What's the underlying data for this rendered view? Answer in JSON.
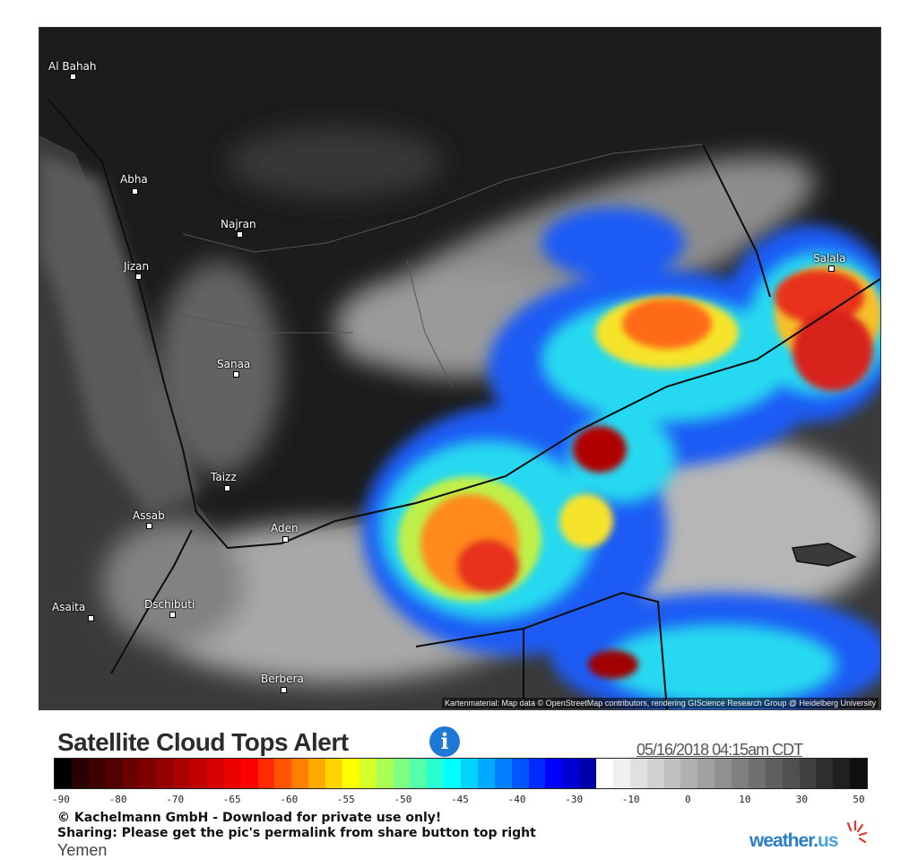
{
  "map": {
    "attribution": "Kartenmaterial: Map data © OpenStreetMap contributors, rendering GIScience Research Group @ Heidelberg University",
    "cities": [
      {
        "name": "Al Bahah"
      },
      {
        "name": "Abha"
      },
      {
        "name": "Najran"
      },
      {
        "name": "Jizan"
      },
      {
        "name": "Sanaa"
      },
      {
        "name": "Taizz"
      },
      {
        "name": "Assab"
      },
      {
        "name": "Aden"
      },
      {
        "name": "Asaita"
      },
      {
        "name": "Dschibuti"
      },
      {
        "name": "Berbera"
      },
      {
        "name": "Salala"
      }
    ]
  },
  "legend": {
    "title": "Satellite Cloud Tops Alert",
    "timestamp": "05/16/2018 04:15am CDT",
    "ticks": [
      "-90",
      "-80",
      "-70",
      "-65",
      "-60",
      "-55",
      "-50",
      "-45",
      "-40",
      "-30",
      "-10",
      "0",
      "10",
      "30",
      "50"
    ],
    "colors": [
      "#000000",
      "#2a0000",
      "#3f0000",
      "#550000",
      "#6a0000",
      "#800000",
      "#950000",
      "#aa0000",
      "#c00000",
      "#d50000",
      "#ea0000",
      "#ff0000",
      "#ff2a00",
      "#ff5500",
      "#ff7f00",
      "#ffaa00",
      "#ffd400",
      "#ffff00",
      "#d4ff2a",
      "#aaff55",
      "#7fff7f",
      "#55ffaa",
      "#2affd4",
      "#00ffff",
      "#00d4ff",
      "#00aaff",
      "#007fff",
      "#0055ff",
      "#002aff",
      "#0000ff",
      "#0000d4",
      "#0000aa",
      "#ffffff",
      "#f0f0f0",
      "#e0e0e0",
      "#d0d0d0",
      "#c0c0c0",
      "#b0b0b0",
      "#a0a0a0",
      "#909090",
      "#808080",
      "#707070",
      "#606060",
      "#505050",
      "#404040",
      "#303030",
      "#202020",
      "#101010"
    ]
  },
  "footer": {
    "copyright": "© Kachelmann GmbH - Download for private use only!",
    "sharing": "Sharing: Please get the pic's permalink from share button top right",
    "region": "Yemen",
    "brand_main": "weather.",
    "brand_suffix": "us"
  }
}
